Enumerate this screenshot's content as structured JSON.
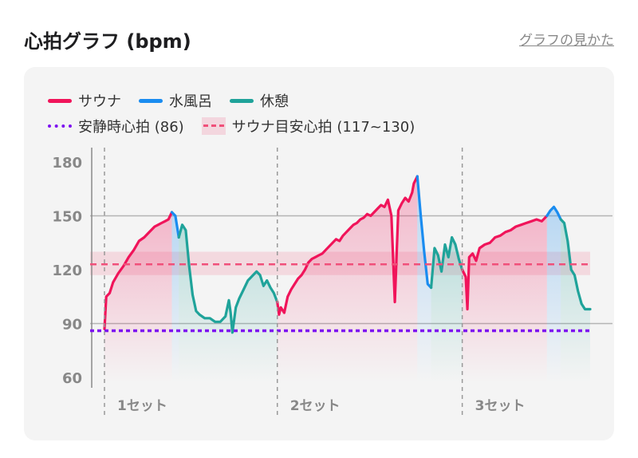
{
  "header": {
    "title": "心拍グラフ (bpm)",
    "help_link": "グラフの見かた"
  },
  "legend": {
    "sauna": "サウナ",
    "cold_bath": "水風呂",
    "rest": "休憩",
    "resting_hr": "安静時心拍 (86)",
    "target_zone": "サウナ目安心拍 (117~130)"
  },
  "colors": {
    "sauna": "#f0145a",
    "cold_bath": "#1a8cf0",
    "rest": "#1fa39a",
    "resting_hr": "#7d12f0",
    "target_line": "#f0507a"
  },
  "chart_data": {
    "type": "line",
    "ylim": [
      55,
      185
    ],
    "y_ticks": [
      "180",
      "150",
      "120",
      "90",
      "60"
    ],
    "y_tick_values": [
      180,
      150,
      120,
      90,
      60
    ],
    "reference_lines": {
      "resting_hr": 86,
      "target_center": 123
    },
    "target_zone": [
      117,
      130
    ],
    "gridlines": [
      150,
      90
    ],
    "sets": [
      {
        "label": "1セット",
        "start": 0
      },
      {
        "label": "2セット",
        "start": 100
      },
      {
        "label": "3セット",
        "start": 207
      }
    ],
    "x_end": 281,
    "phases": [
      {
        "type": "sauna",
        "start": 0,
        "end": 39
      },
      {
        "type": "cold_bath",
        "start": 39,
        "end": 43
      },
      {
        "type": "rest",
        "start": 43,
        "end": 100
      },
      {
        "type": "sauna",
        "start": 100,
        "end": 181
      },
      {
        "type": "cold_bath",
        "start": 181,
        "end": 189
      },
      {
        "type": "rest",
        "start": 189,
        "end": 207
      },
      {
        "type": "sauna",
        "start": 207,
        "end": 256
      },
      {
        "type": "cold_bath",
        "start": 256,
        "end": 264
      },
      {
        "type": "rest",
        "start": 264,
        "end": 281
      }
    ],
    "series": [
      {
        "type": "sauna",
        "x": [
          0,
          1,
          3,
          5,
          8,
          11,
          14,
          17,
          20,
          23,
          26,
          29,
          31,
          33,
          35,
          37,
          39
        ],
        "y": [
          87,
          105,
          107,
          113,
          118,
          122,
          127,
          131,
          136,
          138,
          141,
          144,
          145,
          146,
          147,
          148,
          152
        ]
      },
      {
        "type": "cold_bath",
        "x": [
          39,
          41,
          43
        ],
        "y": [
          152,
          150,
          138
        ]
      },
      {
        "type": "rest",
        "x": [
          43,
          45,
          47,
          49,
          51,
          53,
          55,
          58,
          61,
          64,
          67,
          70,
          72,
          73,
          74,
          76,
          78,
          80,
          83,
          86,
          88,
          90,
          92,
          94,
          96,
          98,
          100
        ],
        "y": [
          138,
          145,
          142,
          122,
          106,
          97,
          95,
          93,
          93,
          91,
          91,
          94,
          103,
          96,
          85,
          99,
          104,
          108,
          114,
          117,
          119,
          117,
          111,
          114,
          110,
          107,
          102
        ]
      },
      {
        "type": "sauna",
        "x": [
          100,
          101,
          102,
          104,
          106,
          108,
          110,
          112,
          114,
          116,
          118,
          120,
          122,
          124,
          126,
          128,
          130,
          132,
          134,
          136,
          138,
          140,
          142,
          144,
          146,
          148,
          150,
          152,
          154,
          156,
          158,
          160,
          162,
          164,
          166,
          168,
          170,
          172,
          174,
          176,
          178,
          179,
          181
        ],
        "y": [
          102,
          95,
          99,
          96,
          105,
          109,
          112,
          115,
          117,
          120,
          124,
          126,
          127,
          128,
          129,
          131,
          133,
          135,
          137,
          136,
          139,
          141,
          143,
          145,
          146,
          148,
          149,
          151,
          150,
          152,
          154,
          156,
          155,
          159,
          150,
          102,
          153,
          157,
          160,
          158,
          163,
          168,
          172
        ]
      },
      {
        "type": "cold_bath",
        "x": [
          181,
          183,
          185,
          187,
          189
        ],
        "y": [
          172,
          150,
          130,
          112,
          110
        ]
      },
      {
        "type": "rest",
        "x": [
          189,
          191,
          193,
          195,
          197,
          199,
          201,
          203,
          205,
          207
        ],
        "y": [
          110,
          132,
          128,
          119,
          134,
          127,
          138,
          134,
          126,
          120
        ]
      },
      {
        "type": "sauna",
        "x": [
          207,
          209,
          210,
          211,
          213,
          215,
          217,
          220,
          223,
          226,
          229,
          232,
          235,
          238,
          241,
          244,
          247,
          250,
          253,
          256
        ],
        "y": [
          120,
          116,
          98,
          127,
          129,
          125,
          132,
          134,
          135,
          138,
          139,
          141,
          142,
          144,
          145,
          146,
          147,
          148,
          147,
          150
        ]
      },
      {
        "type": "cold_bath",
        "x": [
          256,
          258,
          260,
          262,
          264
        ],
        "y": [
          150,
          153,
          155,
          152,
          148
        ]
      },
      {
        "type": "rest",
        "x": [
          264,
          266,
          268,
          270,
          272,
          274,
          276,
          278,
          281
        ],
        "y": [
          148,
          146,
          136,
          120,
          117,
          108,
          101,
          98,
          98
        ]
      }
    ]
  }
}
